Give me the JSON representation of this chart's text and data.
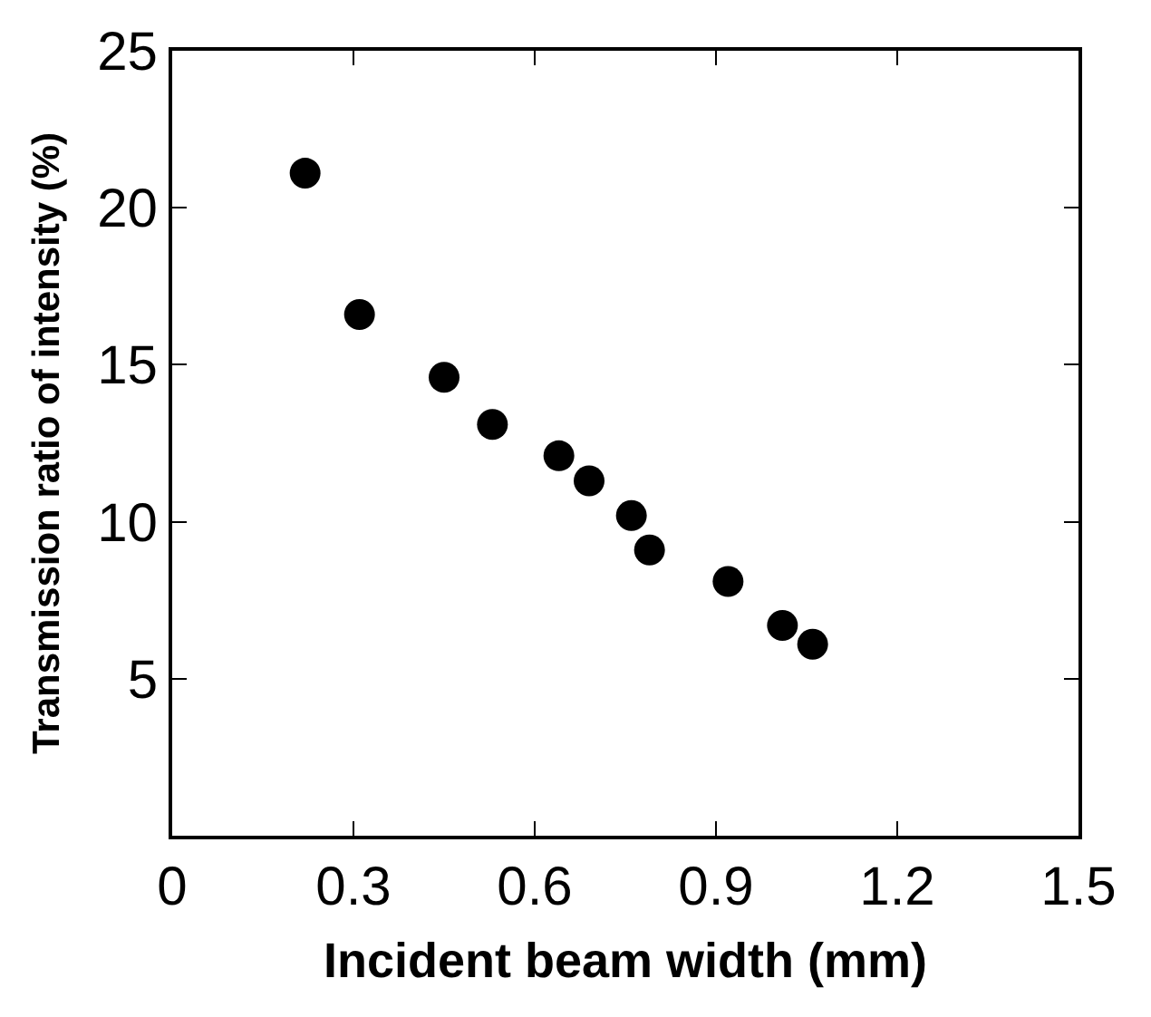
{
  "chart_data": {
    "type": "scatter",
    "xlabel": "Incident beam width (mm)",
    "ylabel": "Transmission ratio of intensity (%)",
    "x": [
      0.22,
      0.31,
      0.45,
      0.53,
      0.64,
      0.69,
      0.76,
      0.79,
      0.92,
      1.01,
      1.06
    ],
    "series": [
      {
        "color": "#000000",
        "values": [
          21.1,
          16.6,
          14.6,
          13.1,
          12.1,
          11.3,
          10.2,
          9.1,
          8.1,
          6.7,
          6.1
        ]
      }
    ],
    "xlim": [
      0,
      1.5
    ],
    "xticks": [
      0,
      0.3,
      0.6,
      0.9,
      1.2,
      1.5
    ],
    "ylim": [
      0,
      25
    ],
    "yticks": [
      {
        "value": 0,
        "label": null
      },
      5,
      10,
      15,
      20,
      25
    ],
    "marker": "circle"
  }
}
